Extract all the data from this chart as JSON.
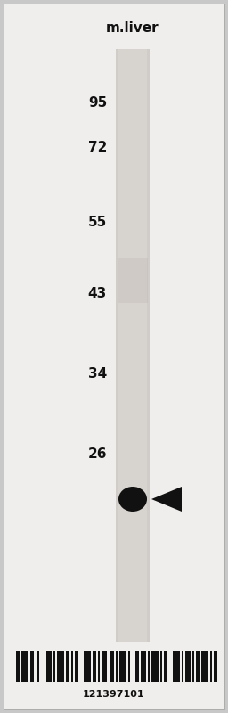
{
  "title": "m.liver",
  "background_color": "#e8e8e8",
  "lane_color": "#d0ccc8",
  "band_color": "#111111",
  "arrow_color": "#111111",
  "marker_labels": [
    "95",
    "72",
    "55",
    "43",
    "34",
    "26"
  ],
  "barcode_number": "121397101",
  "title_fontsize": 11,
  "marker_fontsize": 11,
  "barcode_fontsize": 8
}
